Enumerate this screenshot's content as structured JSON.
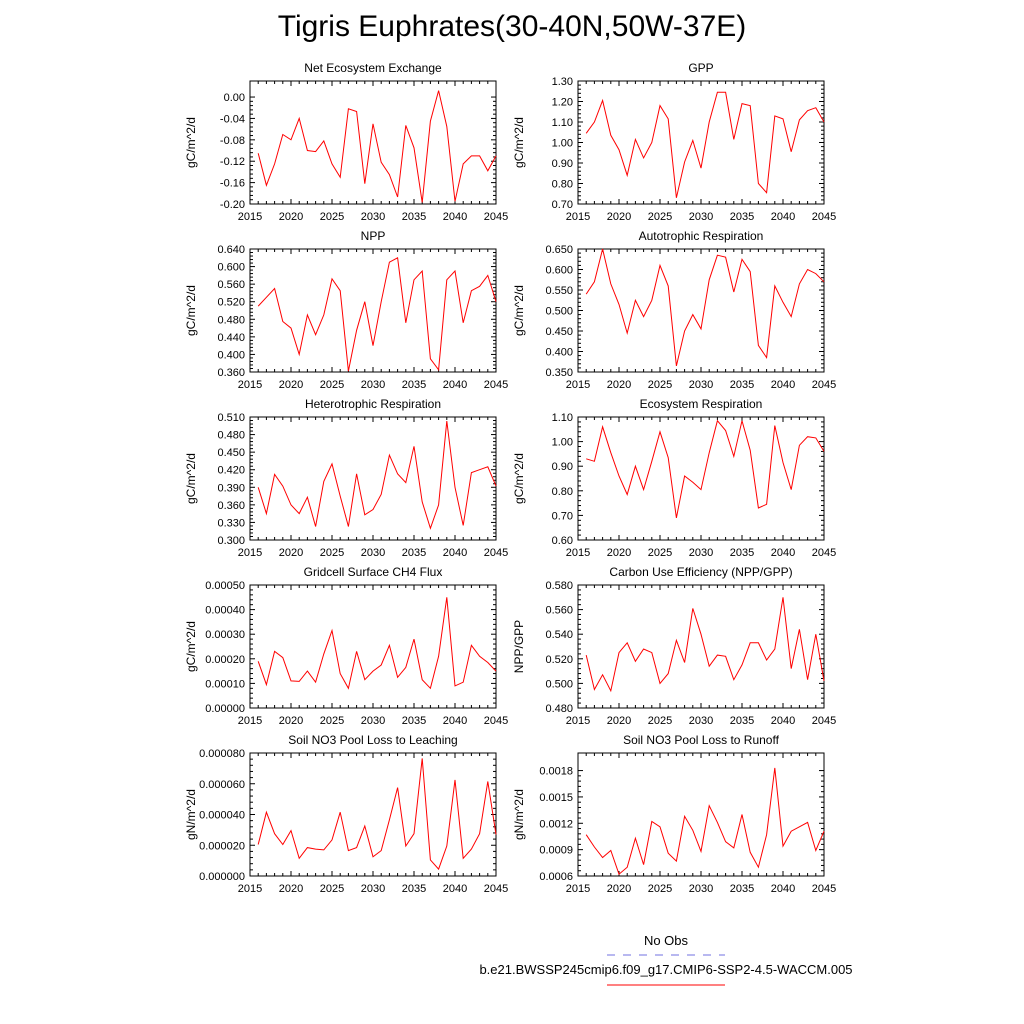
{
  "title": "Tigris Euphrates(30-40N,50W-37E)",
  "colors": {
    "model": "#ff0000",
    "obs": "#7070e0",
    "axis": "#000000"
  },
  "legend": {
    "obs_label": "No Obs",
    "model_label": "b.e21.BWSSP245cmip6.f09_g17.CMIP6-SSP2-4.5-WACCM.005"
  },
  "chart_data": [
    {
      "type": "line",
      "title": "Net Ecosystem Exchange",
      "ylabel": "gC/m^2/d",
      "x": [
        2016,
        2017,
        2018,
        2019,
        2020,
        2021,
        2022,
        2023,
        2024,
        2025,
        2026,
        2027,
        2028,
        2029,
        2030,
        2031,
        2032,
        2033,
        2034,
        2035,
        2036,
        2037,
        2038,
        2039,
        2040,
        2041,
        2042,
        2043,
        2044,
        2045
      ],
      "values": [
        -0.105,
        -0.165,
        -0.125,
        -0.07,
        -0.08,
        -0.04,
        -0.1,
        -0.102,
        -0.082,
        -0.125,
        -0.15,
        -0.022,
        -0.027,
        -0.162,
        -0.05,
        -0.122,
        -0.145,
        -0.187,
        -0.053,
        -0.095,
        -0.197,
        -0.045,
        0.012,
        -0.055,
        -0.195,
        -0.125,
        -0.11,
        -0.11,
        -0.138,
        -0.11
      ],
      "xlim": [
        2015,
        2045
      ],
      "ylim": [
        -0.2,
        0.03
      ],
      "xticks": [
        "2015",
        "2020",
        "2025",
        "2030",
        "2035",
        "2040",
        "2045"
      ],
      "yticks": [
        "-0.20",
        "-0.16",
        "-0.12",
        "-0.08",
        "-0.04",
        "0.00"
      ]
    },
    {
      "type": "line",
      "title": "GPP",
      "ylabel": "gC/m^2/d",
      "x": [
        2016,
        2017,
        2018,
        2019,
        2020,
        2021,
        2022,
        2023,
        2024,
        2025,
        2026,
        2027,
        2028,
        2029,
        2030,
        2031,
        2032,
        2033,
        2034,
        2035,
        2036,
        2037,
        2038,
        2039,
        2040,
        2041,
        2042,
        2043,
        2044,
        2045
      ],
      "values": [
        1.045,
        1.1,
        1.205,
        1.035,
        0.965,
        0.84,
        1.015,
        0.925,
        1.0,
        1.18,
        1.115,
        0.73,
        0.905,
        1.01,
        0.875,
        1.1,
        1.245,
        1.245,
        1.015,
        1.19,
        1.18,
        0.8,
        0.755,
        1.13,
        1.115,
        0.955,
        1.11,
        1.155,
        1.17,
        1.1
      ],
      "xlim": [
        2015,
        2045
      ],
      "ylim": [
        0.7,
        1.3
      ],
      "xticks": [
        "2015",
        "2020",
        "2025",
        "2030",
        "2035",
        "2040",
        "2045"
      ],
      "yticks": [
        "0.70",
        "0.80",
        "0.90",
        "1.00",
        "1.10",
        "1.20",
        "1.30"
      ]
    },
    {
      "type": "line",
      "title": "NPP",
      "ylabel": "gC/m^2/d",
      "x": [
        2016,
        2017,
        2018,
        2019,
        2020,
        2021,
        2022,
        2023,
        2024,
        2025,
        2026,
        2027,
        2028,
        2029,
        2030,
        2031,
        2032,
        2033,
        2034,
        2035,
        2036,
        2037,
        2038,
        2039,
        2040,
        2041,
        2042,
        2043,
        2044,
        2045
      ],
      "values": [
        0.51,
        0.53,
        0.55,
        0.475,
        0.46,
        0.4,
        0.49,
        0.445,
        0.49,
        0.572,
        0.545,
        0.362,
        0.455,
        0.52,
        0.42,
        0.52,
        0.61,
        0.62,
        0.472,
        0.57,
        0.59,
        0.39,
        0.365,
        0.57,
        0.59,
        0.472,
        0.545,
        0.555,
        0.58,
        0.52
      ],
      "xlim": [
        2015,
        2045
      ],
      "ylim": [
        0.36,
        0.64
      ],
      "xticks": [
        "2015",
        "2020",
        "2025",
        "2030",
        "2035",
        "2040",
        "2045"
      ],
      "yticks": [
        "0.360",
        "0.400",
        "0.440",
        "0.480",
        "0.520",
        "0.560",
        "0.600",
        "0.640"
      ]
    },
    {
      "type": "line",
      "title": "Autotrophic Respiration",
      "ylabel": "gC/m^2/d",
      "x": [
        2016,
        2017,
        2018,
        2019,
        2020,
        2021,
        2022,
        2023,
        2024,
        2025,
        2026,
        2027,
        2028,
        2029,
        2030,
        2031,
        2032,
        2033,
        2034,
        2035,
        2036,
        2037,
        2038,
        2039,
        2040,
        2041,
        2042,
        2043,
        2044,
        2045
      ],
      "values": [
        0.54,
        0.57,
        0.65,
        0.565,
        0.515,
        0.445,
        0.525,
        0.485,
        0.525,
        0.61,
        0.56,
        0.365,
        0.45,
        0.49,
        0.455,
        0.575,
        0.635,
        0.63,
        0.545,
        0.625,
        0.595,
        0.415,
        0.385,
        0.56,
        0.52,
        0.485,
        0.565,
        0.6,
        0.59,
        0.57
      ],
      "xlim": [
        2015,
        2045
      ],
      "ylim": [
        0.35,
        0.65
      ],
      "xticks": [
        "2015",
        "2020",
        "2025",
        "2030",
        "2035",
        "2040",
        "2045"
      ],
      "yticks": [
        "0.350",
        "0.400",
        "0.450",
        "0.500",
        "0.550",
        "0.600",
        "0.650"
      ]
    },
    {
      "type": "line",
      "title": "Heterotrophic Respiration",
      "ylabel": "gC/m^2/d",
      "x": [
        2016,
        2017,
        2018,
        2019,
        2020,
        2021,
        2022,
        2023,
        2024,
        2025,
        2026,
        2027,
        2028,
        2029,
        2030,
        2031,
        2032,
        2033,
        2034,
        2035,
        2036,
        2037,
        2038,
        2039,
        2040,
        2041,
        2042,
        2043,
        2044,
        2045
      ],
      "values": [
        0.39,
        0.345,
        0.412,
        0.392,
        0.36,
        0.345,
        0.373,
        0.323,
        0.4,
        0.43,
        0.375,
        0.323,
        0.413,
        0.343,
        0.352,
        0.378,
        0.445,
        0.413,
        0.398,
        0.46,
        0.365,
        0.32,
        0.36,
        0.503,
        0.39,
        0.325,
        0.415,
        0.42,
        0.425,
        0.392
      ],
      "xlim": [
        2015,
        2045
      ],
      "ylim": [
        0.3,
        0.51
      ],
      "xticks": [
        "2015",
        "2020",
        "2025",
        "2030",
        "2035",
        "2040",
        "2045"
      ],
      "yticks": [
        "0.300",
        "0.330",
        "0.360",
        "0.390",
        "0.420",
        "0.450",
        "0.480",
        "0.510"
      ]
    },
    {
      "type": "line",
      "title": "Ecosystem Respiration",
      "ylabel": "gC/m^2/d",
      "x": [
        2016,
        2017,
        2018,
        2019,
        2020,
        2021,
        2022,
        2023,
        2024,
        2025,
        2026,
        2027,
        2028,
        2029,
        2030,
        2031,
        2032,
        2033,
        2034,
        2035,
        2036,
        2037,
        2038,
        2039,
        2040,
        2041,
        2042,
        2043,
        2044,
        2045
      ],
      "values": [
        0.93,
        0.92,
        1.06,
        0.955,
        0.86,
        0.785,
        0.9,
        0.805,
        0.92,
        1.04,
        0.935,
        0.69,
        0.86,
        0.835,
        0.805,
        0.955,
        1.085,
        1.045,
        0.94,
        1.085,
        0.965,
        0.73,
        0.745,
        1.065,
        0.915,
        0.805,
        0.985,
        1.02,
        1.015,
        0.96
      ],
      "xlim": [
        2015,
        2045
      ],
      "ylim": [
        0.6,
        1.1
      ],
      "xticks": [
        "2015",
        "2020",
        "2025",
        "2030",
        "2035",
        "2040",
        "2045"
      ],
      "yticks": [
        "0.60",
        "0.70",
        "0.80",
        "0.90",
        "1.00",
        "1.10"
      ]
    },
    {
      "type": "line",
      "title": "Gridcell Surface CH4 Flux",
      "ylabel": "gC/m^2/d",
      "x": [
        2016,
        2017,
        2018,
        2019,
        2020,
        2021,
        2022,
        2023,
        2024,
        2025,
        2026,
        2027,
        2028,
        2029,
        2030,
        2031,
        2032,
        2033,
        2034,
        2035,
        2036,
        2037,
        2038,
        2039,
        2040,
        2041,
        2042,
        2043,
        2044,
        2045
      ],
      "values": [
        0.00019,
        9.5e-05,
        0.00023,
        0.000205,
        0.00011,
        0.000108,
        0.00015,
        0.000105,
        0.00022,
        0.000315,
        0.00014,
        8e-05,
        0.00023,
        0.000115,
        0.00015,
        0.000175,
        0.000255,
        0.000125,
        0.000165,
        0.00028,
        0.000115,
        8e-05,
        0.00021,
        0.00045,
        9e-05,
        0.000105,
        0.000255,
        0.00021,
        0.000185,
        0.00015
      ],
      "xlim": [
        2015,
        2045
      ],
      "ylim": [
        0,
        0.0005
      ],
      "xticks": [
        "2015",
        "2020",
        "2025",
        "2030",
        "2035",
        "2040",
        "2045"
      ],
      "yticks": [
        "0.00000",
        "0.00010",
        "0.00020",
        "0.00030",
        "0.00040",
        "0.00050"
      ]
    },
    {
      "type": "line",
      "title": "Carbon Use Efficiency (NPP/GPP)",
      "ylabel": "NPP/GPP",
      "x": [
        2016,
        2017,
        2018,
        2019,
        2020,
        2021,
        2022,
        2023,
        2024,
        2025,
        2026,
        2027,
        2028,
        2029,
        2030,
        2031,
        2032,
        2033,
        2034,
        2035,
        2036,
        2037,
        2038,
        2039,
        2040,
        2041,
        2042,
        2043,
        2044,
        2045
      ],
      "values": [
        0.523,
        0.495,
        0.507,
        0.494,
        0.525,
        0.533,
        0.518,
        0.528,
        0.525,
        0.5,
        0.508,
        0.535,
        0.517,
        0.561,
        0.54,
        0.514,
        0.523,
        0.522,
        0.503,
        0.515,
        0.533,
        0.533,
        0.519,
        0.528,
        0.57,
        0.512,
        0.544,
        0.503,
        0.54,
        0.502
      ],
      "xlim": [
        2015,
        2045
      ],
      "ylim": [
        0.48,
        0.58
      ],
      "xticks": [
        "2015",
        "2020",
        "2025",
        "2030",
        "2035",
        "2040",
        "2045"
      ],
      "yticks": [
        "0.480",
        "0.500",
        "0.520",
        "0.540",
        "0.560",
        "0.580"
      ]
    },
    {
      "type": "line",
      "title": "Soil NO3 Pool Loss to Leaching",
      "ylabel": "gN/m^2/d",
      "x": [
        2016,
        2017,
        2018,
        2019,
        2020,
        2021,
        2022,
        2023,
        2024,
        2025,
        2026,
        2027,
        2028,
        2029,
        2030,
        2031,
        2032,
        2033,
        2034,
        2035,
        2036,
        2037,
        2038,
        2039,
        2040,
        2041,
        2042,
        2043,
        2044,
        2045
      ],
      "values": [
        2.05e-05,
        4.15e-05,
        2.75e-05,
        2.05e-05,
        2.95e-05,
        1.15e-05,
        1.85e-05,
        1.75e-05,
        1.7e-05,
        2.35e-05,
        4.15e-05,
        1.65e-05,
        1.85e-05,
        3.25e-05,
        1.25e-05,
        1.65e-05,
        3.65e-05,
        5.75e-05,
        1.95e-05,
        2.75e-05,
        7.65e-05,
        1.05e-05,
        4.5e-06,
        1.95e-05,
        6.25e-05,
        1.15e-05,
        1.75e-05,
        2.75e-05,
        6.15e-05,
        2.7e-05
      ],
      "xlim": [
        2015,
        2045
      ],
      "ylim": [
        0,
        8e-05
      ],
      "xticks": [
        "2015",
        "2020",
        "2025",
        "2030",
        "2035",
        "2040",
        "2045"
      ],
      "yticks": [
        "0.000000",
        "0.000020",
        "0.000040",
        "0.000060",
        "0.000080"
      ]
    },
    {
      "type": "line",
      "title": "Soil NO3 Pool Loss to Runoff",
      "ylabel": "gN/m^2/d",
      "x": [
        2016,
        2017,
        2018,
        2019,
        2020,
        2021,
        2022,
        2023,
        2024,
        2025,
        2026,
        2027,
        2028,
        2029,
        2030,
        2031,
        2032,
        2033,
        2034,
        2035,
        2036,
        2037,
        2038,
        2039,
        2040,
        2041,
        2042,
        2043,
        2044,
        2045
      ],
      "values": [
        0.00107,
        0.00093,
        0.00081,
        0.00089,
        0.00062,
        0.0007,
        0.00103,
        0.00073,
        0.00122,
        0.00116,
        0.00086,
        0.00077,
        0.00128,
        0.00112,
        0.00088,
        0.0014,
        0.00121,
        0.00099,
        0.00092,
        0.0013,
        0.00087,
        0.0007,
        0.00107,
        0.00183,
        0.00094,
        0.00111,
        0.00116,
        0.00121,
        0.00089,
        0.00111
      ],
      "xlim": [
        2015,
        2045
      ],
      "ylim": [
        0.0006,
        0.002
      ],
      "xticks": [
        "2015",
        "2020",
        "2025",
        "2030",
        "2035",
        "2040",
        "2045"
      ],
      "yticks": [
        "0.0006",
        "0.0009",
        "0.0012",
        "0.0015",
        "0.0018"
      ]
    }
  ]
}
